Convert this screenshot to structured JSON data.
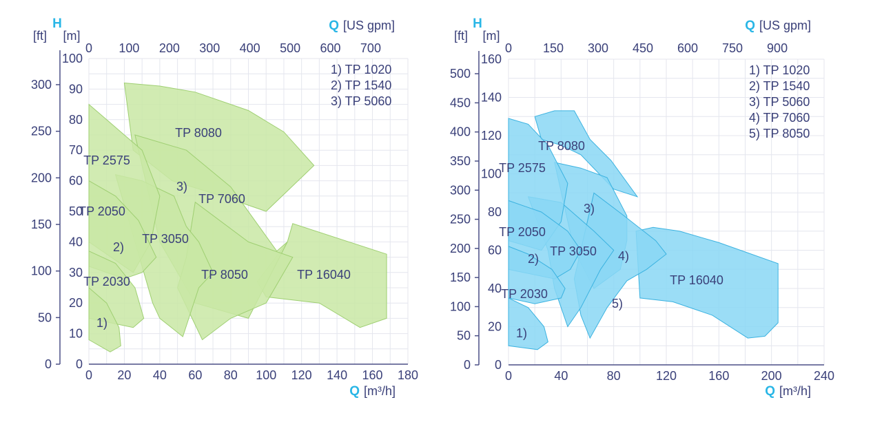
{
  "colors": {
    "accent": "#29b6e6",
    "text": "#3a4079",
    "axis": "#4a4f86",
    "grid": "#e4e6ee",
    "green_fill": "#c9e8a4",
    "green_stroke": "#9fcf72",
    "blue_fill": "#8ad7f4",
    "blue_stroke": "#3bb2e0"
  },
  "chart_data": [
    {
      "type": "area",
      "title": "",
      "xlabel": "Q [m³/h]",
      "xlabel_symbol": "Q",
      "xlabel_unit": "[m³/h]",
      "x2label_symbol": "Q",
      "x2label_unit": "[US gpm]",
      "ylabel_symbol": "H",
      "y_unit_ft": "[ft]",
      "y_unit_m": "[m]",
      "xlim": [
        0,
        180
      ],
      "ylim": [
        0,
        100
      ],
      "x_ticks": [
        "0",
        "20",
        "40",
        "60",
        "80",
        "100",
        "120",
        "140",
        "160",
        "180"
      ],
      "x_ticks_values": [
        0,
        20,
        40,
        60,
        80,
        100,
        120,
        140,
        160,
        180
      ],
      "x2_ticks": [
        "0",
        "100",
        "200",
        "300",
        "400",
        "500",
        "600",
        "700"
      ],
      "x2_ticks_values": [
        0,
        100,
        200,
        300,
        400,
        500,
        600,
        700
      ],
      "y_m_ticks": [
        "0",
        "10",
        "20",
        "30",
        "40",
        "50",
        "60",
        "70",
        "80",
        "90",
        "100"
      ],
      "y_m_ticks_values": [
        0,
        10,
        20,
        30,
        40,
        50,
        60,
        70,
        80,
        90,
        100
      ],
      "y_ft_ticks": [
        "0",
        "50",
        "100",
        "150",
        "200",
        "250",
        "300"
      ],
      "y_ft_ticks_values": [
        0,
        50,
        100,
        150,
        200,
        250,
        300
      ],
      "legend": [
        "1) TP 1020",
        "2) TP 1540",
        "3) TP 5060"
      ],
      "legend_position": "top-right",
      "grid": true,
      "series": [
        {
          "name": "TP 16040",
          "points": [
            [
              95,
              27
            ],
            [
              112,
              40
            ],
            [
              115,
              46
            ],
            [
              168,
              36
            ],
            [
              168,
              15
            ],
            [
              153,
              12
            ],
            [
              130,
              20
            ],
            [
              100,
              22
            ]
          ]
        },
        {
          "name": "TP 8080",
          "points": [
            [
              20,
              92
            ],
            [
              40,
              91
            ],
            [
              60,
              89
            ],
            [
              90,
              83
            ],
            [
              110,
              76
            ],
            [
              127,
              65
            ],
            [
              100,
              50
            ],
            [
              75,
              55
            ],
            [
              47,
              60
            ],
            [
              25,
              70
            ]
          ]
        },
        {
          "name": "TP 7060",
          "points": [
            [
              26,
              75
            ],
            [
              55,
              70
            ],
            [
              80,
              58
            ],
            [
              106,
              37
            ],
            [
              112,
              40
            ],
            [
              90,
              15
            ],
            [
              60,
              20
            ],
            [
              40,
              40
            ]
          ]
        },
        {
          "name": "TP 8050",
          "points": [
            [
              60,
              53
            ],
            [
              90,
              40
            ],
            [
              115,
              35
            ],
            [
              100,
              20
            ],
            [
              80,
              15
            ],
            [
              64,
              8
            ],
            [
              50,
              25
            ],
            [
              55,
              35
            ]
          ]
        },
        {
          "name": "TP 3050",
          "points": [
            [
              15,
              62
            ],
            [
              30,
              60
            ],
            [
              48,
              55
            ],
            [
              55,
              45
            ],
            [
              62,
              40
            ],
            [
              70,
              30
            ],
            [
              62,
              25
            ],
            [
              53,
              9
            ],
            [
              40,
              15
            ],
            [
              36,
              20
            ]
          ]
        },
        {
          "name": "TP 2575",
          "points": [
            [
              0,
              85
            ],
            [
              10,
              80
            ],
            [
              20,
              75
            ],
            [
              30,
              70
            ],
            [
              40,
              55
            ],
            [
              35,
              40
            ],
            [
              25,
              30
            ],
            [
              0,
              40
            ]
          ]
        },
        {
          "name": "TP 2050",
          "points": [
            [
              0,
              60
            ],
            [
              15,
              55
            ],
            [
              28,
              47
            ],
            [
              38,
              35
            ],
            [
              30,
              30
            ],
            [
              20,
              28
            ],
            [
              0,
              32
            ]
          ]
        },
        {
          "name": "TP 2030",
          "points": [
            [
              0,
              37
            ],
            [
              15,
              33
            ],
            [
              26,
              25
            ],
            [
              31,
              15
            ],
            [
              25,
              12
            ],
            [
              0,
              15
            ]
          ]
        },
        {
          "name": "1)",
          "points": [
            [
              0,
              25
            ],
            [
              10,
              20
            ],
            [
              17,
              12
            ],
            [
              18,
              6
            ],
            [
              12,
              4
            ],
            [
              0,
              8
            ]
          ]
        }
      ],
      "labels": [
        "TP 8080",
        "TP 2575",
        "3)",
        "TP 7060",
        "TP 2050",
        "TP 3050",
        "2)",
        "TP 8050",
        "TP 16040",
        "TP 2030",
        "1)"
      ]
    },
    {
      "type": "area",
      "title": "",
      "xlabel": "Q [m³/h]",
      "xlabel_symbol": "Q",
      "xlabel_unit": "[m³/h]",
      "x2label_symbol": "Q",
      "x2label_unit": "[US gpm]",
      "ylabel_symbol": "H",
      "y_unit_ft": "[ft]",
      "y_unit_m": "[m]",
      "xlim": [
        0,
        240
      ],
      "ylim": [
        0,
        160
      ],
      "x_ticks": [
        "0",
        "40",
        "80",
        "120",
        "160",
        "200",
        "240"
      ],
      "x_ticks_values": [
        0,
        40,
        80,
        120,
        160,
        200,
        240
      ],
      "x2_ticks": [
        "0",
        "150",
        "300",
        "450",
        "600",
        "750",
        "900"
      ],
      "x2_ticks_values": [
        0,
        150,
        300,
        450,
        600,
        750,
        900
      ],
      "y_m_ticks": [
        "0",
        "20",
        "40",
        "60",
        "80",
        "100",
        "120",
        "140",
        "160"
      ],
      "y_m_ticks_values": [
        0,
        20,
        40,
        60,
        80,
        100,
        120,
        140,
        160
      ],
      "y_ft_ticks": [
        "0",
        "50",
        "100",
        "150",
        "200",
        "250",
        "300",
        "350",
        "400",
        "450",
        "500"
      ],
      "y_ft_ticks_values": [
        0,
        50,
        100,
        150,
        200,
        250,
        300,
        350,
        400,
        450,
        500
      ],
      "legend": [
        "1) TP 1020",
        "2) TP 1540",
        "3) TP 5060",
        "4) TP 7060",
        "5) TP 8050"
      ],
      "legend_position": "top-right",
      "grid": true,
      "series": [
        {
          "name": "TP 16040",
          "points": [
            [
              97,
              70
            ],
            [
              110,
              72
            ],
            [
              130,
              70
            ],
            [
              160,
              64
            ],
            [
              205,
              53
            ],
            [
              205,
              22
            ],
            [
              195,
              15
            ],
            [
              182,
              14
            ],
            [
              155,
              26
            ],
            [
              125,
              33
            ],
            [
              100,
              35
            ]
          ]
        },
        {
          "name": "TP 8080",
          "points": [
            [
              20,
              130
            ],
            [
              35,
              133
            ],
            [
              50,
              133
            ],
            [
              62,
              118
            ],
            [
              78,
              107
            ],
            [
              98,
              88
            ],
            [
              80,
              92
            ],
            [
              55,
              110
            ],
            [
              40,
              115
            ],
            [
              25,
              118
            ]
          ]
        },
        {
          "name": "TP 7060",
          "points": [
            [
              35,
              106
            ],
            [
              55,
              103
            ],
            [
              75,
              98
            ],
            [
              90,
              78
            ],
            [
              90,
              65
            ],
            [
              85,
              50
            ],
            [
              65,
              40
            ],
            [
              50,
              60
            ]
          ]
        },
        {
          "name": "TP 8050",
          "points": [
            [
              65,
              90
            ],
            [
              88,
              78
            ],
            [
              112,
              65
            ],
            [
              120,
              58
            ],
            [
              105,
              50
            ],
            [
              90,
              44
            ],
            [
              75,
              30
            ],
            [
              62,
              14
            ],
            [
              55,
              26
            ],
            [
              50,
              45
            ]
          ]
        },
        {
          "name": "TP 3050",
          "points": [
            [
              15,
              88
            ],
            [
              40,
              85
            ],
            [
              65,
              70
            ],
            [
              80,
              60
            ],
            [
              70,
              50
            ],
            [
              55,
              30
            ],
            [
              45,
              20
            ],
            [
              35,
              40
            ],
            [
              30,
              60
            ]
          ]
        },
        {
          "name": "TP 2575",
          "points": [
            [
              0,
              129
            ],
            [
              15,
              126
            ],
            [
              30,
              115
            ],
            [
              45,
              95
            ],
            [
              40,
              75
            ],
            [
              25,
              60
            ],
            [
              0,
              65
            ]
          ]
        },
        {
          "name": "TP 2050",
          "points": [
            [
              0,
              86
            ],
            [
              25,
              80
            ],
            [
              45,
              70
            ],
            [
              55,
              60
            ],
            [
              47,
              50
            ],
            [
              35,
              45
            ],
            [
              0,
              50
            ]
          ]
        },
        {
          "name": "TP 2030",
          "points": [
            [
              0,
              62
            ],
            [
              15,
              58
            ],
            [
              33,
              50
            ],
            [
              43,
              40
            ],
            [
              40,
              35
            ],
            [
              20,
              32
            ],
            [
              0,
              35
            ]
          ]
        },
        {
          "name": "1)",
          "points": [
            [
              0,
              35
            ],
            [
              15,
              30
            ],
            [
              27,
              20
            ],
            [
              30,
              12
            ],
            [
              22,
              8
            ],
            [
              0,
              10
            ]
          ]
        }
      ],
      "labels": [
        "TP 8080",
        "TP 2575",
        "3)",
        "TP 2050",
        "TP 3050",
        "4)",
        "2)",
        "TP 16040",
        "5)",
        "TP 2030",
        "1)"
      ]
    }
  ]
}
